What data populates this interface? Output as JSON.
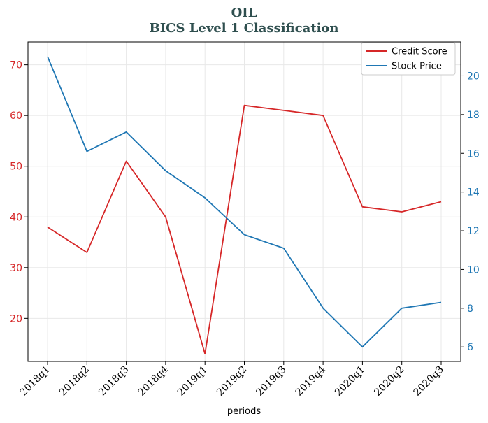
{
  "chart_data": {
    "type": "line",
    "title": "OIL",
    "subtitle": "BICS Level 1 Classification",
    "xlabel": "periods",
    "categories": [
      "2018q1",
      "2018q2",
      "2018q3",
      "2018q4",
      "2019q1",
      "2019q2",
      "2019q3",
      "2019q4",
      "2020q1",
      "2020q2",
      "2020q3"
    ],
    "series": [
      {
        "name": "Credit Score",
        "axis": "left",
        "color": "#d62728",
        "values": [
          38,
          33,
          51,
          40,
          13,
          62,
          61,
          60,
          42,
          41,
          43
        ]
      },
      {
        "name": "Stock Price",
        "axis": "right",
        "color": "#1f77b4",
        "values": [
          21.0,
          16.1,
          17.1,
          15.1,
          13.7,
          11.8,
          11.1,
          8.0,
          6.0,
          8.0,
          8.3
        ]
      }
    ],
    "y_left": {
      "ylim": [
        11.5,
        74.5
      ],
      "ticks": [
        20,
        30,
        40,
        50,
        60,
        70
      ]
    },
    "y_right": {
      "ylim": [
        5.25,
        21.75
      ],
      "ticks": [
        6,
        8,
        10,
        12,
        14,
        16,
        18,
        20
      ]
    },
    "grid": true,
    "legend": "top-right"
  }
}
